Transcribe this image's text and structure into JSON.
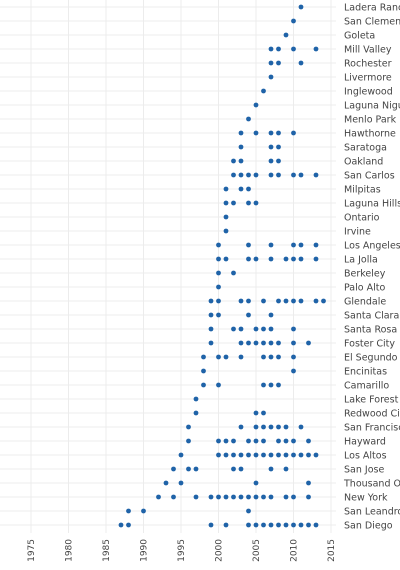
{
  "chart_data": {
    "type": "scatter",
    "title": "",
    "xlabel": "",
    "ylabel": "",
    "xlim": [
      1973,
      2015
    ],
    "x_ticks": [
      1975,
      1980,
      1985,
      1990,
      1995,
      2000,
      2005,
      2010,
      2015
    ],
    "grid": true,
    "legend": "none",
    "marker_color": "#1f63a8",
    "categories": [
      "Ladera Ranch",
      "San Clemente",
      "Goleta",
      "Mill Valley",
      "Rochester",
      "Livermore",
      "Inglewood",
      "Laguna Niguel",
      "Menlo Park",
      "Hawthorne",
      "Saratoga",
      "Oakland",
      "San Carlos",
      "Milpitas",
      "Laguna Hills",
      "Ontario",
      "Irvine",
      "Los Angeles",
      "La Jolla",
      "Berkeley",
      "Palo Alto",
      "Glendale",
      "Santa Clara",
      "Santa Rosa",
      "Foster City",
      "El Segundo",
      "Encinitas",
      "Camarillo",
      "Lake Forest",
      "Redwood City",
      "San Francisco",
      "Hayward",
      "Los Altos",
      "San Jose",
      "Thousand Oaks",
      "New York",
      "San Leandro",
      "San Diego"
    ],
    "series": [
      {
        "points": [
          {
            "city": "Ladera Ranch",
            "years": [
              2011
            ]
          },
          {
            "city": "San Clemente",
            "years": [
              2010
            ]
          },
          {
            "city": "Goleta",
            "years": [
              2009
            ]
          },
          {
            "city": "Mill Valley",
            "years": [
              2007,
              2008,
              2010,
              2013
            ]
          },
          {
            "city": "Rochester",
            "years": [
              2007,
              2008,
              2011
            ]
          },
          {
            "city": "Livermore",
            "years": [
              2007
            ]
          },
          {
            "city": "Inglewood",
            "years": [
              2006
            ]
          },
          {
            "city": "Laguna Niguel",
            "years": [
              2005
            ]
          },
          {
            "city": "Menlo Park",
            "years": [
              2004
            ]
          },
          {
            "city": "Hawthorne",
            "years": [
              2003,
              2005,
              2007,
              2008,
              2010
            ]
          },
          {
            "city": "Saratoga",
            "years": [
              2003,
              2007,
              2008
            ]
          },
          {
            "city": "Oakland",
            "years": [
              2002,
              2003,
              2007,
              2008
            ]
          },
          {
            "city": "San Carlos",
            "years": [
              2002,
              2003,
              2004,
              2005,
              2007,
              2008,
              2010,
              2011,
              2013
            ]
          },
          {
            "city": "Milpitas",
            "years": [
              2001,
              2003,
              2004
            ]
          },
          {
            "city": "Laguna Hills",
            "years": [
              2001,
              2002,
              2004,
              2005
            ]
          },
          {
            "city": "Ontario",
            "years": [
              2001
            ]
          },
          {
            "city": "Irvine",
            "years": [
              2001
            ]
          },
          {
            "city": "Los Angeles",
            "years": [
              2000,
              2004,
              2007,
              2010,
              2011,
              2013
            ]
          },
          {
            "city": "La Jolla",
            "years": [
              2000,
              2001,
              2004,
              2005,
              2007,
              2009,
              2010,
              2011,
              2013
            ]
          },
          {
            "city": "Berkeley",
            "years": [
              2000,
              2002
            ]
          },
          {
            "city": "Palo Alto",
            "years": [
              2000
            ]
          },
          {
            "city": "Glendale",
            "years": [
              1999,
              2000,
              2003,
              2004,
              2006,
              2008,
              2009,
              2010,
              2011,
              2013,
              2014
            ]
          },
          {
            "city": "Santa Clara",
            "years": [
              1999,
              2000,
              2004,
              2007
            ]
          },
          {
            "city": "Santa Rosa",
            "years": [
              1999,
              2002,
              2003,
              2005,
              2006,
              2007,
              2010
            ]
          },
          {
            "city": "Foster City",
            "years": [
              1999,
              2003,
              2004,
              2005,
              2006,
              2007,
              2008,
              2010,
              2012
            ]
          },
          {
            "city": "El Segundo",
            "years": [
              1998,
              2000,
              2001,
              2003,
              2006,
              2007,
              2008,
              2010
            ]
          },
          {
            "city": "Encinitas",
            "years": [
              1998,
              2010
            ]
          },
          {
            "city": "Camarillo",
            "years": [
              1998,
              2000,
              2006,
              2007,
              2008
            ]
          },
          {
            "city": "Lake Forest",
            "years": [
              1997
            ]
          },
          {
            "city": "Redwood City",
            "years": [
              1997,
              2005,
              2006
            ]
          },
          {
            "city": "San Francisco",
            "years": [
              1996,
              2003,
              2005,
              2006,
              2007,
              2008,
              2009,
              2011
            ]
          },
          {
            "city": "Hayward",
            "years": [
              1996,
              2000,
              2001,
              2002,
              2004,
              2005,
              2006,
              2008,
              2009,
              2010,
              2012
            ]
          },
          {
            "city": "Los Altos",
            "years": [
              1995,
              2000,
              2001,
              2002,
              2003,
              2004,
              2005,
              2006,
              2007,
              2008,
              2009,
              2010,
              2011,
              2012,
              2013
            ]
          },
          {
            "city": "San Jose",
            "years": [
              1994,
              1996,
              1997,
              2002,
              2003,
              2007,
              2009
            ]
          },
          {
            "city": "Thousand Oaks",
            "years": [
              1993,
              1995,
              2005,
              2012
            ]
          },
          {
            "city": "New York",
            "years": [
              1992,
              1994,
              1997,
              1999,
              2000,
              2001,
              2002,
              2003,
              2004,
              2005,
              2006,
              2007,
              2009,
              2010,
              2012
            ]
          },
          {
            "city": "San Leandro",
            "years": [
              1988,
              1990,
              2004
            ]
          },
          {
            "city": "San Diego",
            "years": [
              1987,
              1988,
              1999,
              2001,
              2004,
              2005,
              2006,
              2007,
              2008,
              2009,
              2010,
              2011,
              2012,
              2013
            ]
          }
        ]
      }
    ]
  }
}
